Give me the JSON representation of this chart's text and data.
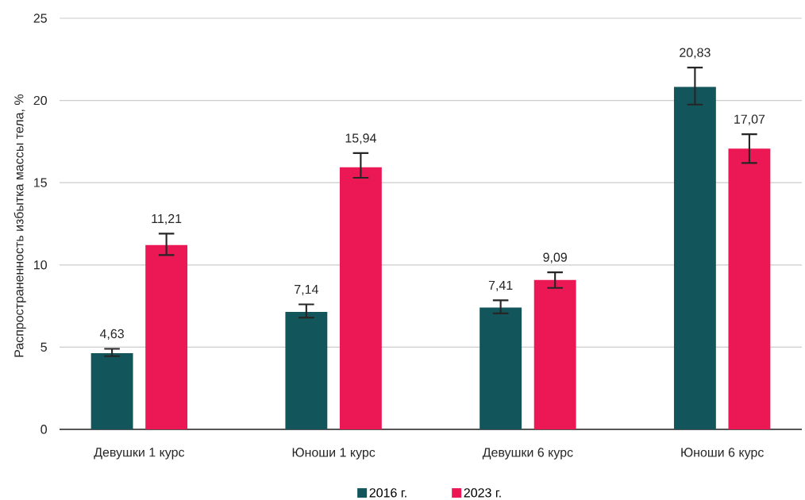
{
  "chart_data": {
    "type": "bar",
    "ylabel": "Распространенность избытка массы тела, %",
    "categories": [
      "Девушки 1 курс",
      "Юноши 1 курс",
      "Девушки 6 курс",
      "Юноши 6 курс"
    ],
    "series": [
      {
        "name": "2016 г.",
        "color": "#12555a",
        "values": [
          4.63,
          7.14,
          7.41,
          20.83
        ],
        "value_labels": [
          "4,63",
          "7,14",
          "7,41",
          "20,83"
        ],
        "errors": [
          [
            4.45,
            4.9
          ],
          [
            6.8,
            7.6
          ],
          [
            7.05,
            7.85
          ],
          [
            19.75,
            22.0
          ]
        ]
      },
      {
        "name": "2023 г.",
        "color": "#eb1855",
        "values": [
          11.21,
          15.94,
          9.09,
          17.07
        ],
        "value_labels": [
          "11,21",
          "15,94",
          "9,09",
          "17,07"
        ],
        "errors": [
          [
            10.6,
            11.9
          ],
          [
            15.3,
            16.8
          ],
          [
            8.6,
            9.55
          ],
          [
            16.2,
            17.95
          ]
        ]
      }
    ],
    "ylim": [
      0,
      25
    ],
    "yticks": [
      0,
      5,
      10,
      15,
      20,
      25
    ],
    "grid": "y",
    "legend": "bottom"
  }
}
